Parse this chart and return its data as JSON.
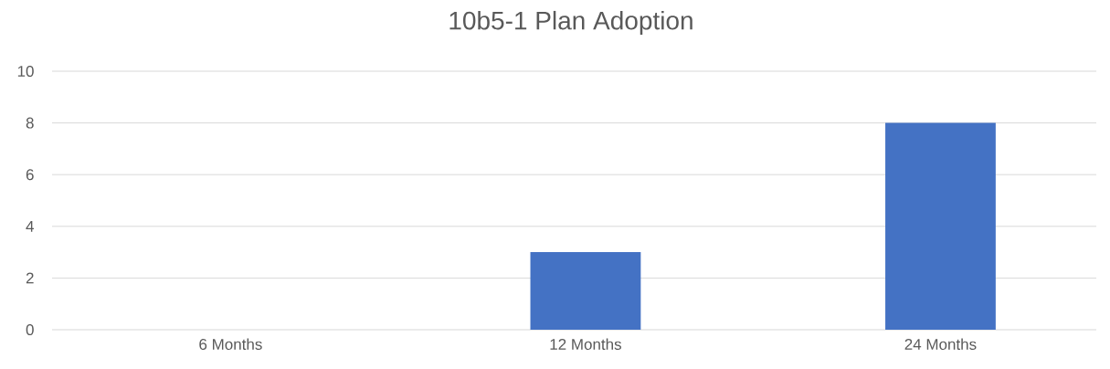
{
  "chart_data": {
    "type": "bar",
    "title": "10b5-1 Plan Adoption",
    "categories": [
      "6 Months",
      "12 Months",
      "24 Months"
    ],
    "values": [
      0,
      3,
      8
    ],
    "color": "#4472c4",
    "ylim": [
      0,
      10
    ],
    "yticks": [
      0,
      2,
      4,
      6,
      8,
      10
    ],
    "grid": "y"
  }
}
